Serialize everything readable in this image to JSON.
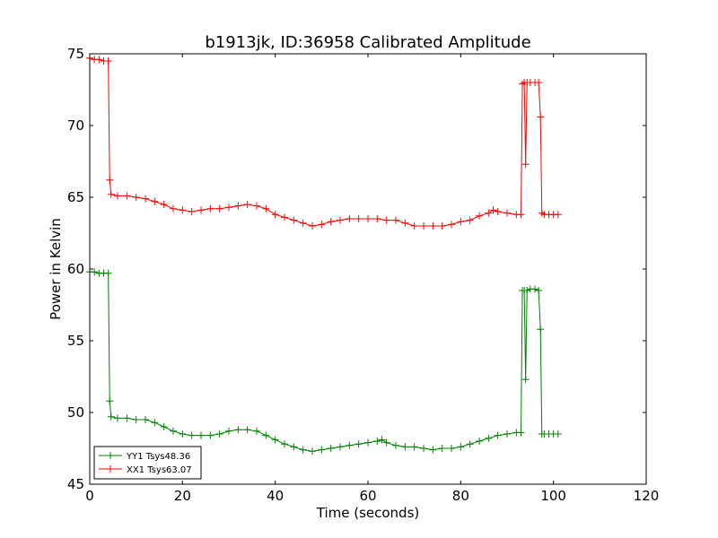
{
  "chart_data": {
    "type": "line",
    "title": "b1913jk, ID:36958 Calibrated Amplitude",
    "xlabel": "Time (seconds)",
    "ylabel": "Power in Kelvin",
    "xlim": [
      0,
      120
    ],
    "ylim": [
      45,
      75
    ],
    "xticks": [
      0,
      20,
      40,
      60,
      80,
      100,
      120
    ],
    "yticks": [
      45,
      50,
      55,
      60,
      65,
      70,
      75
    ],
    "grid": false,
    "legend_position": "lower-left",
    "marker": "plus",
    "series": [
      {
        "name": "YY1 Tsys48.36",
        "color": "#008000",
        "x": [
          0,
          1,
          2,
          3,
          4,
          4.3,
          4.6,
          6,
          8,
          10,
          12,
          14,
          16,
          18,
          20,
          22,
          24,
          26,
          28,
          30,
          32,
          34,
          36,
          38,
          40,
          42,
          44,
          46,
          48,
          50,
          52,
          54,
          56,
          58,
          60,
          62,
          63,
          64,
          66,
          68,
          70,
          72,
          74,
          76,
          78,
          80,
          82,
          84,
          86,
          88,
          90,
          92,
          93,
          93.3,
          93.7,
          94,
          94.3,
          95,
          96,
          96.8,
          97.2,
          97.5,
          98,
          99,
          100,
          101
        ],
        "y": [
          59.8,
          59.8,
          59.7,
          59.7,
          59.7,
          50.8,
          49.7,
          49.6,
          49.6,
          49.5,
          49.5,
          49.3,
          49.0,
          48.7,
          48.5,
          48.4,
          48.4,
          48.4,
          48.5,
          48.7,
          48.8,
          48.8,
          48.7,
          48.4,
          48.1,
          47.8,
          47.6,
          47.4,
          47.3,
          47.4,
          47.5,
          47.6,
          47.7,
          47.8,
          47.9,
          48.0,
          48.1,
          47.9,
          47.7,
          47.6,
          47.6,
          47.5,
          47.4,
          47.5,
          47.5,
          47.6,
          47.8,
          48.0,
          48.2,
          48.4,
          48.5,
          48.6,
          48.6,
          58.5,
          58.5,
          52.3,
          58.5,
          58.6,
          58.6,
          58.5,
          55.8,
          48.5,
          48.5,
          48.5,
          48.5,
          48.5
        ]
      },
      {
        "name": "XX1 Tsys63.07",
        "color": "#ff0000",
        "x": [
          0,
          1,
          2,
          3,
          4,
          4.3,
          4.6,
          6,
          8,
          10,
          12,
          14,
          16,
          18,
          20,
          22,
          24,
          26,
          28,
          30,
          32,
          34,
          36,
          38,
          40,
          42,
          44,
          46,
          48,
          50,
          52,
          54,
          56,
          58,
          60,
          62,
          64,
          66,
          68,
          70,
          72,
          74,
          76,
          78,
          80,
          82,
          84,
          86,
          87,
          88,
          90,
          92,
          93,
          93.3,
          93.7,
          94,
          94.3,
          95,
          96,
          96.8,
          97.2,
          97.5,
          98,
          99,
          100,
          101
        ],
        "y": [
          74.7,
          74.6,
          74.6,
          74.5,
          74.5,
          66.2,
          65.2,
          65.1,
          65.1,
          65.0,
          64.9,
          64.7,
          64.5,
          64.2,
          64.1,
          64.0,
          64.1,
          64.2,
          64.2,
          64.3,
          64.4,
          64.5,
          64.4,
          64.2,
          63.8,
          63.6,
          63.4,
          63.2,
          63.0,
          63.1,
          63.3,
          63.4,
          63.5,
          63.5,
          63.5,
          63.5,
          63.4,
          63.4,
          63.2,
          63.0,
          63.0,
          63.0,
          63.0,
          63.1,
          63.3,
          63.4,
          63.7,
          63.9,
          64.1,
          64.0,
          63.9,
          63.8,
          63.8,
          72.9,
          73.0,
          67.3,
          73.0,
          73.0,
          73.0,
          73.0,
          70.6,
          63.9,
          63.8,
          63.8,
          63.8,
          63.8
        ]
      }
    ]
  }
}
